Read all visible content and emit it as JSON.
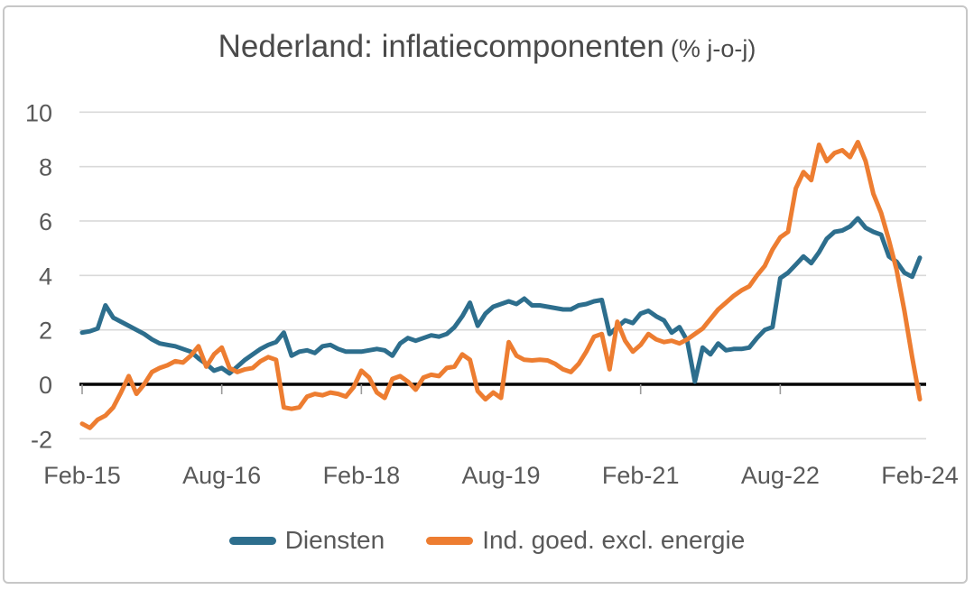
{
  "title": {
    "main": "Nederland: inflatiecomponenten",
    "suffix": "(% j-o-j)"
  },
  "colors": {
    "diensten_line": "#2d6e8d",
    "ind_goed_line": "#ed7d31",
    "gridline": "#d9d9d9",
    "zero_axis": "#000000",
    "tick_mark": "#9b9b9b",
    "axis_text": "#595959",
    "title_text": "#4a4a4a",
    "card_border": "#c7c7c7",
    "background": "#ffffff"
  },
  "chart_data": {
    "type": "line",
    "title": "Nederland: inflatiecomponenten (% j-o-j)",
    "xlabel": "",
    "ylabel": "",
    "x_unit": "month",
    "x_start": "Feb-2015",
    "x_end": "Feb-2024",
    "n_points": 109,
    "x_tick_labels": [
      "Feb-15",
      "Aug-16",
      "Feb-18",
      "Aug-19",
      "Feb-21",
      "Aug-22",
      "Feb-24"
    ],
    "x_tick_month_index": [
      0,
      18,
      36,
      54,
      72,
      90,
      108
    ],
    "y_ticks": [
      10,
      8,
      6,
      4,
      2,
      0,
      -2
    ],
    "ylim": [
      -2.5,
      10.5
    ],
    "grid": "horizontal",
    "legend_position": "bottom",
    "series": [
      {
        "name": "Diensten",
        "color": "#2d6e8d",
        "values": [
          1.9,
          1.95,
          2.05,
          2.9,
          2.45,
          2.3,
          2.15,
          2.0,
          1.85,
          1.65,
          1.5,
          1.45,
          1.4,
          1.3,
          1.2,
          0.95,
          0.75,
          0.5,
          0.6,
          0.4,
          0.65,
          0.9,
          1.1,
          1.3,
          1.45,
          1.55,
          1.9,
          1.05,
          1.2,
          1.25,
          1.15,
          1.4,
          1.45,
          1.3,
          1.2,
          1.2,
          1.2,
          1.25,
          1.3,
          1.25,
          1.05,
          1.5,
          1.7,
          1.6,
          1.7,
          1.8,
          1.75,
          1.85,
          2.1,
          2.5,
          3.0,
          2.15,
          2.6,
          2.85,
          2.95,
          3.05,
          2.95,
          3.15,
          2.9,
          2.9,
          2.85,
          2.8,
          2.75,
          2.75,
          2.9,
          2.95,
          3.05,
          3.1,
          1.85,
          2.1,
          2.35,
          2.25,
          2.6,
          2.7,
          2.5,
          2.35,
          1.9,
          2.1,
          1.6,
          0.1,
          1.35,
          1.1,
          1.5,
          1.25,
          1.3,
          1.3,
          1.35,
          1.7,
          2.0,
          2.1,
          3.9,
          4.1,
          4.4,
          4.7,
          4.45,
          4.85,
          5.35,
          5.6,
          5.65,
          5.8,
          6.1,
          5.75,
          5.6,
          5.5,
          4.7,
          4.5,
          4.1,
          3.95,
          4.65
        ]
      },
      {
        "name": "Ind. goed. excl. energie",
        "color": "#ed7d31",
        "values": [
          -1.45,
          -1.6,
          -1.3,
          -1.15,
          -0.85,
          -0.3,
          0.3,
          -0.35,
          0.0,
          0.45,
          0.6,
          0.7,
          0.85,
          0.8,
          1.05,
          1.4,
          0.65,
          1.1,
          1.35,
          0.6,
          0.45,
          0.55,
          0.6,
          0.85,
          1.0,
          0.9,
          -0.85,
          -0.9,
          -0.85,
          -0.45,
          -0.35,
          -0.4,
          -0.3,
          -0.35,
          -0.45,
          -0.1,
          0.5,
          0.25,
          -0.3,
          -0.5,
          0.2,
          0.3,
          0.1,
          -0.2,
          0.25,
          0.35,
          0.3,
          0.6,
          0.65,
          1.1,
          0.9,
          -0.25,
          -0.55,
          -0.3,
          -0.5,
          1.55,
          1.05,
          0.9,
          0.88,
          0.9,
          0.88,
          0.75,
          0.55,
          0.45,
          0.75,
          1.2,
          1.75,
          1.85,
          0.55,
          2.3,
          1.6,
          1.2,
          1.45,
          1.85,
          1.65,
          1.55,
          1.6,
          1.5,
          1.65,
          1.85,
          2.05,
          2.4,
          2.75,
          3.0,
          3.25,
          3.45,
          3.6,
          4.0,
          4.35,
          4.95,
          5.4,
          5.6,
          7.2,
          7.8,
          7.5,
          8.8,
          8.2,
          8.5,
          8.6,
          8.35,
          8.9,
          8.2,
          7.0,
          6.3,
          5.3,
          4.2,
          2.7,
          1.0,
          -0.55
        ]
      }
    ]
  }
}
